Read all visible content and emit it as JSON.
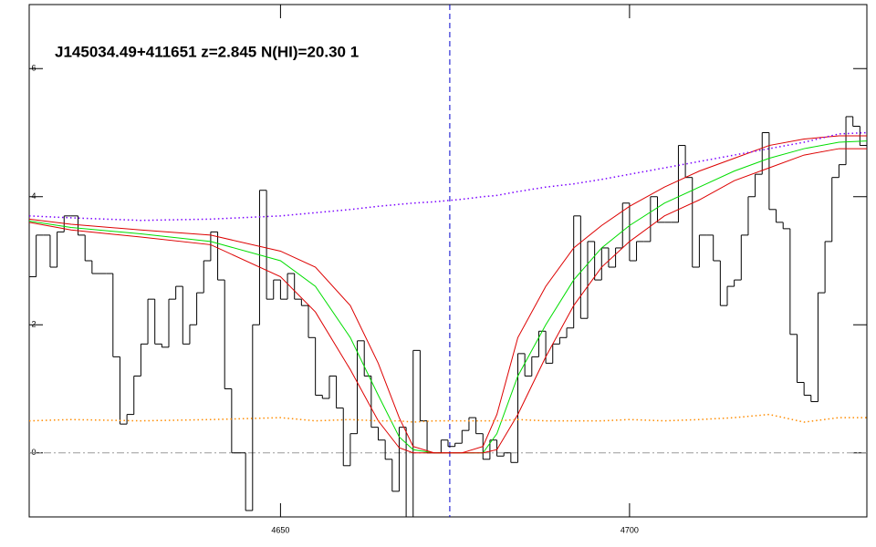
{
  "chart_data": {
    "type": "spectrum",
    "title": "J145034.49+411651 z=2.845 N(HI)=20.30 1",
    "xlim": [
      4614,
      4734
    ],
    "ylim": [
      -1,
      7
    ],
    "xticks": [
      4650,
      4700
    ],
    "yticks": [
      0,
      2,
      4,
      6
    ],
    "hline": 0,
    "vline": 4674.25,
    "series": [
      {
        "style": "steps",
        "color": "#000000",
        "step": 1,
        "x": [
          4614,
          4615,
          4616,
          4617,
          4618,
          4619,
          4620,
          4621,
          4622,
          4623,
          4624,
          4625,
          4626,
          4627,
          4628,
          4629,
          4630,
          4631,
          4632,
          4633,
          4634,
          4635,
          4636,
          4637,
          4638,
          4639,
          4640,
          4641,
          4642,
          4643,
          4644,
          4645,
          4646,
          4647,
          4648,
          4649,
          4650,
          4651,
          4652,
          4653,
          4654,
          4655,
          4656,
          4657,
          4658,
          4659,
          4660,
          4661,
          4662,
          4663,
          4664,
          4665,
          4666,
          4667,
          4668,
          4669,
          4670,
          4671,
          4672,
          4673,
          4674,
          4675,
          4676,
          4677,
          4678,
          4679,
          4680,
          4681,
          4682,
          4683,
          4684,
          4685,
          4686,
          4687,
          4688,
          4689,
          4690,
          4691,
          4692,
          4693,
          4694,
          4695,
          4696,
          4697,
          4698,
          4699,
          4700,
          4701,
          4702,
          4703,
          4704,
          4705,
          4706,
          4707,
          4708,
          4709,
          4710,
          4711,
          4712,
          4713,
          4714,
          4715,
          4716,
          4717,
          4718,
          4719,
          4720,
          4721,
          4722,
          4723,
          4724,
          4725,
          4726,
          4727,
          4728,
          4729,
          4730,
          4731,
          4732,
          4733
        ],
        "values": [
          2.75,
          3.4,
          3.4,
          2.9,
          3.45,
          3.7,
          3.7,
          3.4,
          3.0,
          2.8,
          2.8,
          2.8,
          1.5,
          0.45,
          0.6,
          1.2,
          1.7,
          2.4,
          1.7,
          1.65,
          2.4,
          2.6,
          1.7,
          2.0,
          2.5,
          3.0,
          3.45,
          2.7,
          1.0,
          0.0,
          0.0,
          -0.9,
          2.0,
          4.1,
          2.4,
          2.7,
          2.4,
          2.8,
          2.4,
          2.3,
          1.8,
          0.9,
          0.85,
          1.2,
          0.7,
          -0.2,
          0.3,
          1.75,
          1.2,
          0.4,
          0.2,
          -0.1,
          -0.6,
          0.4,
          -1.0,
          1.6,
          0.5,
          0.0,
          0.0,
          0.2,
          0.1,
          0.15,
          0.35,
          0.55,
          0.3,
          -0.1,
          0.2,
          -0.05,
          0.0,
          -0.15,
          1.55,
          1.2,
          1.5,
          1.9,
          1.4,
          1.7,
          1.8,
          1.95,
          3.7,
          2.1,
          3.3,
          2.7,
          3.2,
          2.9,
          3.2,
          3.9,
          3.0,
          3.3,
          3.3,
          4.0,
          3.6,
          3.6,
          3.6,
          4.8,
          4.3,
          2.9,
          3.4,
          3.4,
          3.0,
          2.3,
          2.6,
          2.7,
          3.4,
          4.0,
          4.35,
          5.0,
          3.8,
          3.6,
          3.5,
          1.85,
          1.1,
          0.9,
          0.8,
          2.5,
          3.3,
          4.3,
          4.5,
          5.25,
          5.1,
          4.8
        ]
      },
      {
        "style": "line",
        "color": "#00dd00",
        "x": [
          4614,
          4620,
          4630,
          4640,
          4650,
          4655,
          4660,
          4664,
          4667,
          4669,
          4672,
          4676,
          4679,
          4681,
          4684,
          4688,
          4692,
          4696,
          4700,
          4705,
          4710,
          4715,
          4720,
          4725,
          4730,
          4734
        ],
        "values": [
          3.62,
          3.52,
          3.42,
          3.3,
          3.0,
          2.6,
          1.8,
          0.9,
          0.25,
          0.05,
          0,
          0,
          0,
          0.3,
          1.2,
          2.0,
          2.7,
          3.2,
          3.55,
          3.9,
          4.15,
          4.4,
          4.6,
          4.75,
          4.85,
          4.87
        ]
      },
      {
        "style": "line",
        "color": "#dd0000",
        "x": [
          4614,
          4620,
          4630,
          4640,
          4650,
          4655,
          4660,
          4664,
          4667,
          4669,
          4672,
          4676,
          4679,
          4681,
          4684,
          4688,
          4692,
          4696,
          4700,
          4705,
          4710,
          4715,
          4720,
          4725,
          4730,
          4734
        ],
        "values": [
          3.65,
          3.57,
          3.48,
          3.4,
          3.15,
          2.9,
          2.3,
          1.4,
          0.55,
          0.1,
          0,
          0,
          0.1,
          0.6,
          1.8,
          2.6,
          3.2,
          3.55,
          3.85,
          4.15,
          4.4,
          4.6,
          4.8,
          4.9,
          4.95,
          4.95
        ]
      },
      {
        "style": "line",
        "color": "#dd0000",
        "x": [
          4614,
          4620,
          4630,
          4640,
          4650,
          4655,
          4660,
          4664,
          4667,
          4669,
          4672,
          4676,
          4679,
          4681,
          4684,
          4688,
          4692,
          4696,
          4700,
          4705,
          4710,
          4715,
          4720,
          4725,
          4730,
          4734
        ],
        "values": [
          3.6,
          3.48,
          3.37,
          3.25,
          2.75,
          2.2,
          1.3,
          0.5,
          0.08,
          0,
          0,
          0,
          0,
          0.05,
          0.6,
          1.5,
          2.3,
          2.9,
          3.3,
          3.7,
          3.95,
          4.25,
          4.45,
          4.65,
          4.75,
          4.75
        ]
      },
      {
        "style": "dotted",
        "color": "#7a00ff",
        "x": [
          4614,
          4620,
          4630,
          4640,
          4650,
          4655,
          4660,
          4664,
          4667,
          4669,
          4672,
          4676,
          4679,
          4681,
          4684,
          4688,
          4692,
          4696,
          4700,
          4705,
          4710,
          4715,
          4720,
          4725,
          4730,
          4734
        ],
        "values": [
          3.7,
          3.67,
          3.63,
          3.65,
          3.7,
          3.75,
          3.8,
          3.85,
          3.88,
          3.9,
          3.92,
          3.96,
          4.0,
          4.02,
          4.08,
          4.15,
          4.2,
          4.27,
          4.35,
          4.45,
          4.55,
          4.65,
          4.75,
          4.85,
          4.98,
          5.0
        ]
      },
      {
        "style": "dotted",
        "color": "#ff8c00",
        "x": [
          4614,
          4620,
          4630,
          4640,
          4650,
          4655,
          4660,
          4664,
          4667,
          4669,
          4672,
          4676,
          4679,
          4681,
          4684,
          4688,
          4692,
          4696,
          4700,
          4705,
          4710,
          4715,
          4720,
          4725,
          4730,
          4734
        ],
        "values": [
          0.5,
          0.52,
          0.5,
          0.52,
          0.55,
          0.5,
          0.52,
          0.5,
          0.5,
          0.48,
          0.5,
          0.5,
          0.5,
          0.5,
          0.52,
          0.5,
          0.5,
          0.5,
          0.52,
          0.5,
          0.52,
          0.55,
          0.6,
          0.48,
          0.55,
          0.55
        ]
      }
    ]
  }
}
